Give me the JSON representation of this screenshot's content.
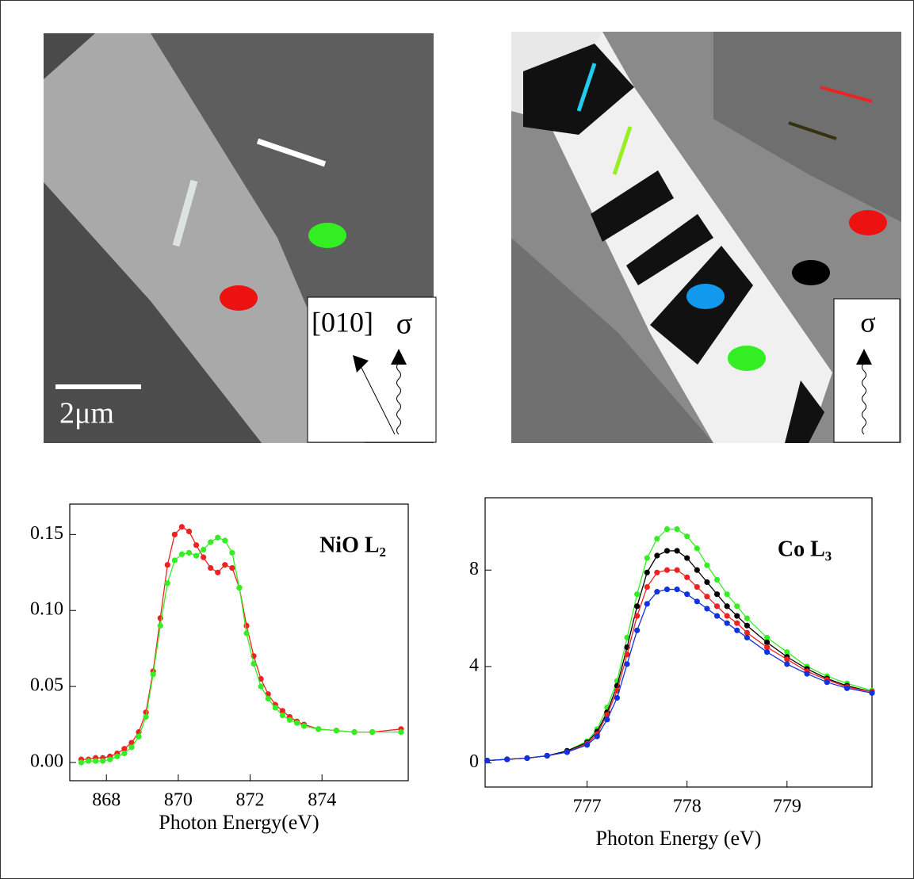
{
  "images": [
    {
      "scale_bar": "2μm",
      "axis_label": "[010]",
      "polarization": "σ"
    },
    {
      "polarization": "σ"
    }
  ],
  "chart_data": [
    {
      "type": "line",
      "annotation": "NiO L₂",
      "x_label": "Photon Energy(eV)",
      "x": [
        867.3,
        867.5,
        867.7,
        867.9,
        868.1,
        868.3,
        868.5,
        868.7,
        868.9,
        869.1,
        869.3,
        869.5,
        869.7,
        869.9,
        870.1,
        870.3,
        870.5,
        870.7,
        870.9,
        871.1,
        871.3,
        871.5,
        871.7,
        871.9,
        872.1,
        872.3,
        872.5,
        872.7,
        872.9,
        873.1,
        873.3,
        873.5,
        873.9,
        874.4,
        874.9,
        875.4,
        876.2
      ],
      "series": [
        {
          "color": "#ee2222",
          "values": [
            0.002,
            0.002,
            0.003,
            0.003,
            0.004,
            0.006,
            0.009,
            0.013,
            0.02,
            0.033,
            0.06,
            0.095,
            0.13,
            0.15,
            0.155,
            0.152,
            0.143,
            0.135,
            0.128,
            0.125,
            0.13,
            0.128,
            0.115,
            0.09,
            0.07,
            0.055,
            0.045,
            0.038,
            0.034,
            0.03,
            0.027,
            0.025,
            0.022,
            0.021,
            0.02,
            0.02,
            0.022
          ]
        },
        {
          "color": "#33ee22",
          "values": [
            0.0,
            0.001,
            0.001,
            0.001,
            0.002,
            0.004,
            0.006,
            0.01,
            0.017,
            0.03,
            0.058,
            0.09,
            0.118,
            0.133,
            0.137,
            0.138,
            0.136,
            0.14,
            0.145,
            0.148,
            0.146,
            0.138,
            0.115,
            0.085,
            0.065,
            0.05,
            0.042,
            0.036,
            0.031,
            0.028,
            0.026,
            0.024,
            0.022,
            0.021,
            0.02,
            0.02,
            0.02
          ]
        }
      ],
      "xlim": [
        866.98,
        876.4
      ],
      "xticks": [
        868,
        870,
        872,
        874
      ],
      "ylim": [
        -0.012,
        0.17
      ],
      "yticks": [
        {
          "value": 0,
          "label": "0.00"
        },
        0.05,
        {
          "value": 0.1,
          "label": "0.10"
        },
        0.15
      ]
    },
    {
      "type": "line",
      "annotation": "Co L₃",
      "x_label": "Photon Energy (eV)",
      "x": [
        776.0,
        776.2,
        776.4,
        776.6,
        776.8,
        777.0,
        777.1,
        777.2,
        777.3,
        777.4,
        777.5,
        777.6,
        777.7,
        777.8,
        777.9,
        778.0,
        778.1,
        778.2,
        778.3,
        778.4,
        778.5,
        778.6,
        778.8,
        779.0,
        779.2,
        779.4,
        779.6,
        779.85
      ],
      "series": [
        {
          "color": "#33ee22",
          "values": [
            0.1,
            0.15,
            0.2,
            0.3,
            0.5,
            0.9,
            1.4,
            2.3,
            3.4,
            5.2,
            7.0,
            8.5,
            9.3,
            9.7,
            9.7,
            9.4,
            8.9,
            8.2,
            7.6,
            7.0,
            6.5,
            6.0,
            5.2,
            4.6,
            4.0,
            3.6,
            3.3,
            3.0
          ]
        },
        {
          "color": "#000000",
          "values": [
            0.1,
            0.15,
            0.2,
            0.3,
            0.5,
            0.85,
            1.3,
            2.1,
            3.2,
            4.8,
            6.5,
            7.9,
            8.6,
            8.8,
            8.8,
            8.5,
            8.0,
            7.5,
            7.0,
            6.5,
            6.1,
            5.7,
            5.0,
            4.4,
            3.9,
            3.5,
            3.2,
            2.95
          ]
        },
        {
          "color": "#ee2222",
          "values": [
            0.1,
            0.15,
            0.2,
            0.3,
            0.45,
            0.8,
            1.2,
            2.0,
            3.0,
            4.5,
            6.1,
            7.3,
            7.9,
            8.0,
            8.0,
            7.7,
            7.3,
            6.9,
            6.5,
            6.1,
            5.8,
            5.4,
            4.8,
            4.3,
            3.8,
            3.45,
            3.15,
            2.95
          ]
        },
        {
          "color": "#1133dd",
          "values": [
            0.1,
            0.15,
            0.2,
            0.3,
            0.45,
            0.75,
            1.1,
            1.8,
            2.7,
            4.1,
            5.5,
            6.6,
            7.1,
            7.2,
            7.2,
            7.0,
            6.7,
            6.4,
            6.1,
            5.8,
            5.5,
            5.2,
            4.6,
            4.1,
            3.7,
            3.35,
            3.1,
            2.9
          ]
        }
      ],
      "xlim": [
        775.98,
        779.85
      ],
      "xticks": [
        777,
        778,
        779
      ],
      "ylim": [
        -1,
        11
      ],
      "yticks": [
        0,
        4,
        8
      ]
    }
  ]
}
